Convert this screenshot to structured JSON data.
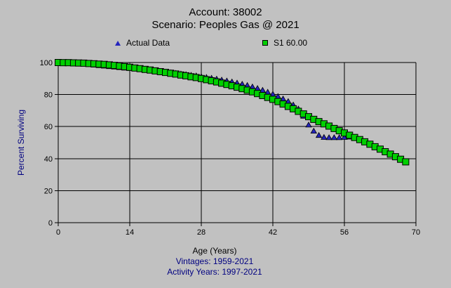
{
  "colors": {
    "background": "#c1c1c1",
    "grid": "#000000",
    "navy_text": "#000080",
    "black_text": "#000000",
    "actual_marker": "#2424bd",
    "fitted_marker": "#00d000"
  },
  "chart_data": {
    "type": "scatter",
    "title": "Account: 38002",
    "subtitle": "Scenario: Peoples Gas @ 2021",
    "xlabel": "Age (Years)",
    "ylabel": "Percent Surviving",
    "annotations": [
      "Vintages: 1959-2021",
      "Activity Years: 1997-2021"
    ],
    "xlim": [
      0,
      70
    ],
    "ylim": [
      0,
      100
    ],
    "x_ticks": [
      0,
      14,
      28,
      42,
      56,
      70
    ],
    "y_ticks": [
      0,
      20,
      40,
      60,
      80,
      100
    ],
    "grid": true,
    "legend_position": "top",
    "series": [
      {
        "name": "Actual Data",
        "marker": "triangle",
        "color": "#2424bd",
        "x_start": 0,
        "x_step": 1,
        "values": [
          100,
          100,
          99.9,
          99.8,
          99.6,
          99.3,
          98.9,
          98.4,
          98.1,
          97.8,
          97.5,
          97.2,
          96.9,
          96.6,
          96.3,
          96,
          95.7,
          95.4,
          95.1,
          94.8,
          94.5,
          94.1,
          93.7,
          93.3,
          92.9,
          92.5,
          92.1,
          91.7,
          91.2,
          90.7,
          90.2,
          89.7,
          89.1,
          88.5,
          87.9,
          87.2,
          86.5,
          85.7,
          84.8,
          83.8,
          82.7,
          81.5,
          80.2,
          78.8,
          77.3,
          75.7,
          73.5,
          71,
          66.5,
          61,
          57.2,
          54.5,
          53.3,
          53.1,
          53.1,
          53.1,
          53.3,
          53.5
        ]
      },
      {
        "name": "S1 60.00",
        "marker": "square",
        "color": "#00d000",
        "x_start": 0,
        "x_step": 1,
        "values": [
          100,
          99.9,
          99.9,
          99.8,
          99.7,
          99.6,
          99.4,
          99.2,
          99,
          98.8,
          98.5,
          98.2,
          97.8,
          97.4,
          97,
          96.6,
          96.2,
          95.7,
          95.3,
          94.8,
          94.3,
          93.8,
          93.3,
          92.8,
          92.2,
          91.7,
          91.1,
          90.6,
          90,
          89.3,
          88.6,
          87.9,
          87.1,
          86.3,
          85.5,
          84.6,
          83.7,
          82.7,
          81.7,
          80.6,
          79.4,
          78.2,
          77,
          75.6,
          74.1,
          72.6,
          71.1,
          69.5,
          67.9,
          66.2,
          64.5,
          63.1,
          61.7,
          60.3,
          58.8,
          57.4,
          56,
          54.6,
          53.2,
          51.9,
          50.5,
          49,
          47.4,
          45.9,
          44.3,
          42.8,
          41.2,
          39.6,
          38
        ]
      }
    ]
  }
}
